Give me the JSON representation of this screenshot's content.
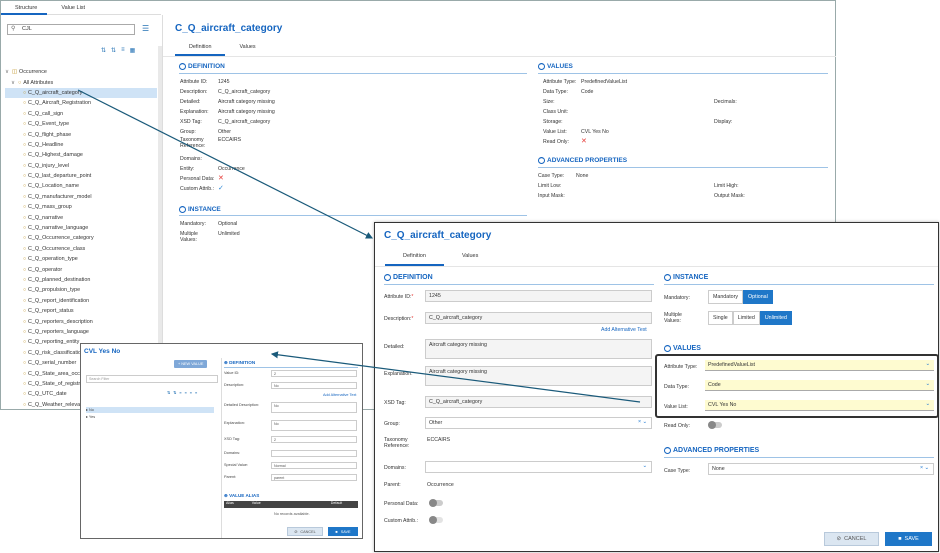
{
  "w1": {
    "tabs": [
      "Structure",
      "Value List"
    ],
    "search_value": "CJL",
    "tree_root": "Occurrence",
    "tree_all": "All Attributes",
    "tree_items": [
      "C_Q_aircraft_category",
      "C_Q_Aircraft_Registration",
      "C_Q_call_sign",
      "C_Q_Event_type",
      "C_Q_flight_phase",
      "C_Q_Headline",
      "C_Q_Highest_damage",
      "C_Q_injury_level",
      "C_Q_last_departure_point",
      "C_Q_Location_name",
      "C_Q_manufacturer_model",
      "C_Q_mass_group",
      "C_Q_narrative",
      "C_Q_narrative_language",
      "C_Q_Occurrence_category",
      "C_Q_Occurrence_class",
      "C_Q_operation_type",
      "C_Q_operator",
      "C_Q_planned_destination",
      "C_Q_propulsion_type",
      "C_Q_report_identification",
      "C_Q_report_status",
      "C_Q_reporters_description",
      "C_Q_reporters_language",
      "C_Q_reporting_entity",
      "C_Q_risk_classification",
      "C_Q_serial_number",
      "C_Q_State_area_occ",
      "C_Q_State_of_registry",
      "C_Q_UTC_date",
      "C_Q_Weather_relevant"
    ],
    "title": "C_Q_aircraft_category",
    "subtabs": [
      "Definition",
      "Values"
    ],
    "definition_head": "DEFINITION",
    "def_fields": [
      {
        "l": "Attribute ID:",
        "v": "1245"
      },
      {
        "l": "Description:",
        "v": "C_Q_aircraft_category"
      },
      {
        "l": "Detailed:",
        "v": "Aircraft category missing"
      },
      {
        "l": "Explanation:",
        "v": "Aircraft category missing"
      },
      {
        "l": "XSD Tag:",
        "v": "C_Q_aircraft_category"
      },
      {
        "l": "Group:",
        "v": "Other"
      },
      {
        "l": "Taxonomy Reference:",
        "v": "ECCAIRS"
      },
      {
        "l": "Domains:",
        "v": ""
      },
      {
        "l": "Entity:",
        "v": "Occurrence"
      },
      {
        "l": "Personal Data:",
        "v": ""
      },
      {
        "l": "Custom Attrib.:",
        "v": ""
      }
    ],
    "instance_head": "INSTANCE",
    "inst_fields": [
      {
        "l": "Mandatory:",
        "v": "Optional"
      },
      {
        "l": "Multiple Values:",
        "v": "Unlimited"
      }
    ],
    "values_head": "VALUES",
    "val_fields": [
      {
        "l": "Attribute Type:",
        "v": "PredefinedValueList"
      },
      {
        "l": "Data Type:",
        "v": "Code"
      },
      {
        "l": "Size:",
        "v": ""
      },
      {
        "l": "Class Unit:",
        "v": ""
      },
      {
        "l": "Storage:",
        "v": ""
      },
      {
        "l": "Value List:",
        "v": "CVL Yes No"
      },
      {
        "l": "Read Only:",
        "v": ""
      }
    ],
    "val_right": [
      "Decimals:",
      "Display:"
    ],
    "adv_head": "ADVANCED PROPERTIES",
    "adv_fields": [
      {
        "l": "Case Type:",
        "v": "None"
      },
      {
        "l": "Limit Low:",
        "v": ""
      },
      {
        "l": "Input Mask:",
        "v": ""
      }
    ],
    "adv_right": [
      "Limit High:",
      "Output Mask:"
    ]
  },
  "w2": {
    "title": "C_Q_aircraft_category",
    "tabs": [
      "Definition",
      "Values"
    ],
    "definition_head": "DEFINITION",
    "attr_id_label": "Attribute ID:",
    "attr_id": "1245",
    "desc_label": "Description:",
    "desc": "C_Q_aircraft_category",
    "add_alt": "Add Alternative Text",
    "detailed_label": "Detailed:",
    "detailed": "Aircraft category missing",
    "expl_label": "Explanation:",
    "expl": "Aircraft category missing",
    "xsd_label": "XSD Tag:",
    "xsd": "C_Q_aircraft_category",
    "group_label": "Group:",
    "group": "Other",
    "tax_label": "Taxonomy Reference:",
    "tax": "ECCAIRS",
    "domains_label": "Domains:",
    "parent_label": "Parent:",
    "parent": "Occurrence",
    "personal_label": "Personal Data:",
    "custom_label": "Custom Attrib.:",
    "instance_head": "INSTANCE",
    "mandatory_label": "Mandatory:",
    "mandatory_opts": [
      "Mandatory",
      "Optional"
    ],
    "multiple_label": "Multiple Values:",
    "multiple_opts": [
      "Single",
      "Limited",
      "Unlimited"
    ],
    "values_head": "VALUES",
    "attr_type_label": "Attribute Type:",
    "attr_type": "PredefinedValueList",
    "data_type_label": "Data Type:",
    "data_type": "Code",
    "value_list_label": "Value List:",
    "value_list": "CVL Yes No",
    "read_only_label": "Read Only:",
    "adv_head": "ADVANCED PROPERTIES",
    "case_label": "Case Type:",
    "case": "None",
    "cancel": "CANCEL",
    "save": "SAVE"
  },
  "w3": {
    "title": "CVL Yes No",
    "new_value": "NEW VALUE",
    "search_placeholder": "Search Filter",
    "items": [
      "No",
      "Yes"
    ],
    "def_head": "DEFINITION",
    "fields": [
      {
        "l": "Value ID:",
        "v": "2"
      },
      {
        "l": "Description:",
        "v": "No"
      },
      {
        "l": "Detailed Description:",
        "v": "No"
      },
      {
        "l": "Explanation:",
        "v": "No"
      },
      {
        "l": "XSD Tag:",
        "v": "2"
      },
      {
        "l": "Domains:",
        "v": ""
      },
      {
        "l": "Special Value:",
        "v": "Normal"
      },
      {
        "l": "Parent:",
        "v": "parent"
      }
    ],
    "add_alt": "Add Alternative Text",
    "alias_head": "VALUE ALIAS",
    "alias_cols": [
      "Alias",
      "Value",
      "Default"
    ],
    "no_records": "No records available.",
    "cancel": "CANCEL",
    "save": "SAVE"
  }
}
